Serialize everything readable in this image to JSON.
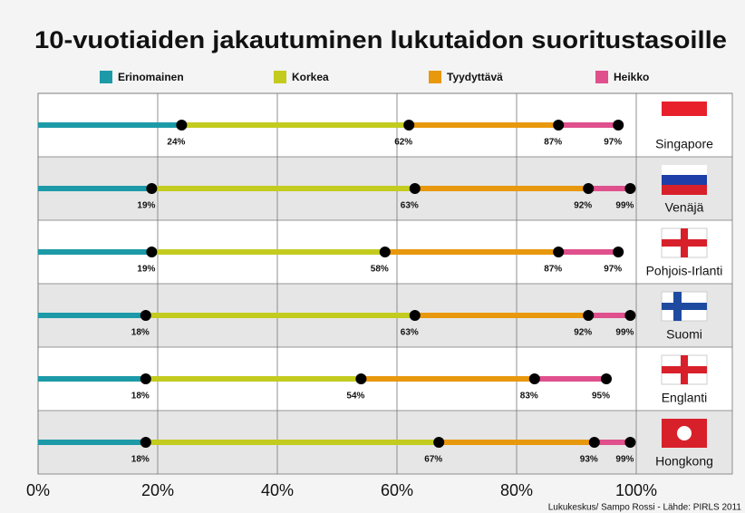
{
  "chart_data": {
    "type": "dot-line",
    "title": "10-vuotiaiden jakautuminen lukutaidon suoritustasoille",
    "categories": [
      "Singapore",
      "Venäjä",
      "Pohjois-Irlanti",
      "Suomi",
      "Englanti",
      "Hongkong"
    ],
    "series": [
      {
        "name": "Erinomainen",
        "color": "#1c9aa8",
        "values": [
          24,
          19,
          19,
          18,
          18,
          18
        ],
        "value_labels": [
          "24%",
          "19%",
          "19%",
          "18%",
          "18%",
          "18%"
        ]
      },
      {
        "name": "Korkea",
        "color": "#c3cb1f",
        "values": [
          62,
          63,
          58,
          63,
          54,
          67
        ],
        "value_labels": [
          "62%",
          "63%",
          "58%",
          "63%",
          "54%",
          "67%"
        ]
      },
      {
        "name": "Tyydyttävä",
        "color": "#e8980d",
        "values": [
          87,
          92,
          87,
          92,
          83,
          93
        ],
        "value_labels": [
          "87%",
          "92%",
          "87%",
          "92%",
          "83%",
          "93%"
        ]
      },
      {
        "name": "Heikko",
        "color": "#e0508d",
        "values": [
          97,
          99,
          97,
          99,
          95,
          99
        ],
        "value_labels": [
          "97%",
          "99%",
          "97%",
          "99%",
          "95%",
          "99%"
        ]
      }
    ],
    "xlim": [
      0,
      100
    ],
    "xticks": [
      {
        "value": 0,
        "label": "0%"
      },
      {
        "value": 20,
        "label": "20%"
      },
      {
        "value": 40,
        "label": "40%"
      },
      {
        "value": 60,
        "label": "60%"
      },
      {
        "value": 80,
        "label": "80%"
      },
      {
        "value": 100,
        "label": "100%"
      }
    ],
    "grid": true,
    "source": "Lukukeskus/ Sampo Rossi - Lähde: PIRLS 2011"
  }
}
